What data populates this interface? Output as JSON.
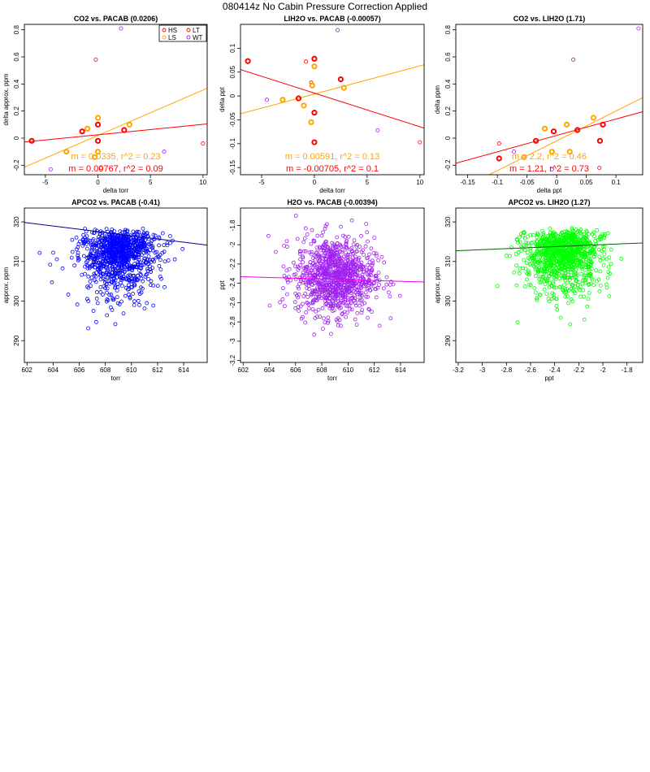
{
  "page": {
    "title": "080414z   No Cabin Pressure Correction Applied"
  },
  "chart_data": [
    {
      "type": "scatter",
      "title": "CO2 vs. PACAB (0.0206)",
      "xlabel": "delta torr",
      "ylabel": "delta approx. ppm",
      "xlim": [
        -7,
        10.4
      ],
      "ylim": [
        -0.27,
        0.84
      ],
      "xticks": [
        -5,
        0,
        5,
        10
      ],
      "yticks": [
        -0.2,
        0,
        0.2,
        0.4,
        0.6,
        0.8
      ],
      "legend": {
        "position": "top-right",
        "columns": 2,
        "entries": [
          {
            "name": "HS",
            "color": "#ff0000"
          },
          {
            "name": "LT",
            "color": "#ff0000"
          },
          {
            "name": "LS",
            "color": "#ffa500"
          },
          {
            "name": "WT",
            "color": "#a020f0"
          }
        ]
      },
      "series": [
        {
          "name": "HS",
          "color": "#ff0000",
          "thick": true,
          "x": [
            -6.3,
            -1.5,
            0,
            0,
            2.5
          ],
          "y": [
            -0.02,
            0.05,
            0.1,
            -0.02,
            0.06
          ]
        },
        {
          "name": "LT",
          "color": "#ff0000",
          "thick": false,
          "x": [
            -0.2,
            10,
            0.3
          ],
          "y": [
            0.58,
            -0.04,
            -0.22
          ]
        },
        {
          "name": "LS",
          "color": "#ffa500",
          "thick": true,
          "x": [
            -1,
            0,
            0,
            -3,
            -0.3,
            3
          ],
          "y": [
            0.07,
            0.15,
            -0.1,
            -0.1,
            -0.14,
            0.1
          ]
        },
        {
          "name": "WT",
          "color": "#a020f0",
          "thick": false,
          "x": [
            2.2,
            -4.5,
            6.3
          ],
          "y": [
            0.81,
            -0.23,
            -0.1
          ]
        }
      ],
      "fits": [
        {
          "color": "#ffa500",
          "slope": 0.0335,
          "intercept": 0.02,
          "label": "m = 0.0335, r^2 = 0.23"
        },
        {
          "color": "#ff0000",
          "slope": 0.00767,
          "intercept": 0.025,
          "label": "m = 0.00767, r^2 = 0.09"
        }
      ]
    },
    {
      "type": "scatter",
      "title": "LIH2O vs. PACAB (-0.00057)",
      "xlabel": "delta torr",
      "ylabel": "delta ppt",
      "xlim": [
        -7,
        10.4
      ],
      "ylim": [
        -0.165,
        0.15
      ],
      "xticks": [
        -5,
        0,
        5,
        10
      ],
      "yticks": [
        -0.15,
        -0.1,
        -0.05,
        0,
        0.05,
        0.1
      ],
      "series": [
        {
          "name": "HS",
          "color": "#ff0000",
          "thick": true,
          "x": [
            -6.3,
            0,
            2.5,
            0,
            -1.5,
            0
          ],
          "y": [
            0.073,
            0.078,
            0.035,
            -0.035,
            -0.005,
            -0.097
          ]
        },
        {
          "name": "LT",
          "color": "#ff0000",
          "thick": false,
          "x": [
            -0.8,
            10,
            -0.3
          ],
          "y": [
            0.072,
            -0.097,
            0.028
          ]
        },
        {
          "name": "LS",
          "color": "#ffa500",
          "thick": true,
          "x": [
            0,
            -0.2,
            2.8,
            -1,
            -3,
            -0.3
          ],
          "y": [
            0.062,
            0.022,
            0.017,
            -0.02,
            -0.008,
            -0.055
          ]
        },
        {
          "name": "WT",
          "color": "#a020f0",
          "thick": false,
          "x": [
            2.2,
            -4.5,
            6
          ],
          "y": [
            0.138,
            -0.008,
            -0.072
          ]
        }
      ],
      "fits": [
        {
          "color": "#ffa500",
          "slope": 0.00591,
          "intercept": 0.004,
          "label": "m = 0.00591, r^2 = 0.13"
        },
        {
          "color": "#ff0000",
          "slope": -0.00705,
          "intercept": 0.006,
          "label": "m = -0.00705, r^2 = 0.1"
        }
      ]
    },
    {
      "type": "scatter",
      "title": "CO2 vs. LIH2O (1.71)",
      "xlabel": "delta ppt",
      "ylabel": "delta ppm",
      "xlim": [
        -0.17,
        0.145
      ],
      "ylim": [
        -0.27,
        0.84
      ],
      "xticks": [
        -0.15,
        -0.1,
        -0.05,
        0,
        0.05,
        0.1
      ],
      "yticks": [
        -0.2,
        0,
        0.2,
        0.4,
        0.6,
        0.8
      ],
      "series": [
        {
          "name": "HS",
          "color": "#ff0000",
          "thick": true,
          "x": [
            -0.097,
            -0.035,
            -0.005,
            0.035,
            0.078,
            0.073
          ],
          "y": [
            -0.15,
            -0.02,
            0.05,
            0.06,
            0.1,
            -0.02
          ]
        },
        {
          "name": "LT",
          "color": "#ff0000",
          "thick": false,
          "x": [
            0.028,
            0.072,
            -0.097
          ],
          "y": [
            0.58,
            -0.22,
            -0.04
          ]
        },
        {
          "name": "LS",
          "color": "#ffa500",
          "thick": true,
          "x": [
            -0.055,
            -0.02,
            0.017,
            -0.008,
            0.022,
            0.062
          ],
          "y": [
            -0.14,
            0.07,
            0.1,
            -0.1,
            -0.1,
            0.15
          ]
        },
        {
          "name": "WT",
          "color": "#a020f0",
          "thick": false,
          "x": [
            0.138,
            -0.072,
            -0.008
          ],
          "y": [
            0.81,
            -0.1,
            -0.23
          ]
        }
      ],
      "fits": [
        {
          "color": "#ffa500",
          "slope": 2.2,
          "intercept": -0.02,
          "label": "m = 2.2, r^2 = 0.46"
        },
        {
          "color": "#ff0000",
          "slope": 1.21,
          "intercept": 0.02,
          "label": "m = 1.21, r^2 = 0.73"
        }
      ]
    },
    {
      "type": "scatter",
      "title": "APCO2 vs. PACAB (-0.41)",
      "xlabel": "torr",
      "ylabel": "approx. ppm",
      "xlim": [
        601.8,
        615.8
      ],
      "ylim": [
        284.5,
        323.5
      ],
      "xticks": [
        602,
        604,
        606,
        608,
        610,
        612,
        614
      ],
      "yticks": [
        290,
        300,
        310,
        320
      ],
      "cloud": {
        "color": "#0000ff",
        "count": 1000,
        "x_mean": 609,
        "x_sd": 1.5,
        "y_peak": 316,
        "y_min": 286,
        "y_max": 323,
        "skew": "down"
      },
      "fits": [
        {
          "color": "#00008b",
          "slope": -0.41,
          "intercept": 566.6,
          "label": ""
        }
      ]
    },
    {
      "type": "scatter",
      "title": "H2O vs. PACAB (-0.00394)",
      "xlabel": "torr",
      "ylabel": "ppt",
      "xlim": [
        601.8,
        615.8
      ],
      "ylim": [
        -3.22,
        -1.62
      ],
      "xticks": [
        602,
        604,
        606,
        608,
        610,
        612,
        614
      ],
      "yticks": [
        -3.2,
        -3.0,
        -2.8,
        -2.6,
        -2.4,
        -2.2,
        -2.0,
        -1.8
      ],
      "cloud": {
        "color": "#a020f0",
        "count": 1000,
        "x_mean": 609,
        "x_sd": 1.5,
        "y_mean": -2.33,
        "y_sd": 0.2,
        "y_min": -3.15,
        "y_max": -1.7
      },
      "fits": [
        {
          "color": "#ee00ee",
          "slope": -0.00394,
          "intercept": 0.04,
          "label": ""
        }
      ]
    },
    {
      "type": "scatter",
      "title": "APCO2 vs. LIH2O (1.27)",
      "xlabel": "ppt",
      "ylabel": "approx. ppm",
      "xlim": [
        -3.22,
        -1.67
      ],
      "ylim": [
        284.5,
        323.5
      ],
      "xticks": [
        -3.2,
        -3.0,
        -2.8,
        -2.6,
        -2.4,
        -2.2,
        -2.0,
        -1.8
      ],
      "yticks": [
        290,
        300,
        310,
        320
      ],
      "cloud": {
        "color": "#00ff00",
        "count": 1000,
        "x_mean": -2.33,
        "x_sd": 0.16,
        "y_peak": 316,
        "y_min": 286,
        "y_max": 323,
        "skew": "down"
      },
      "fits": [
        {
          "color": "#006400",
          "slope": 1.27,
          "intercept": 316.8,
          "label": ""
        }
      ]
    }
  ]
}
